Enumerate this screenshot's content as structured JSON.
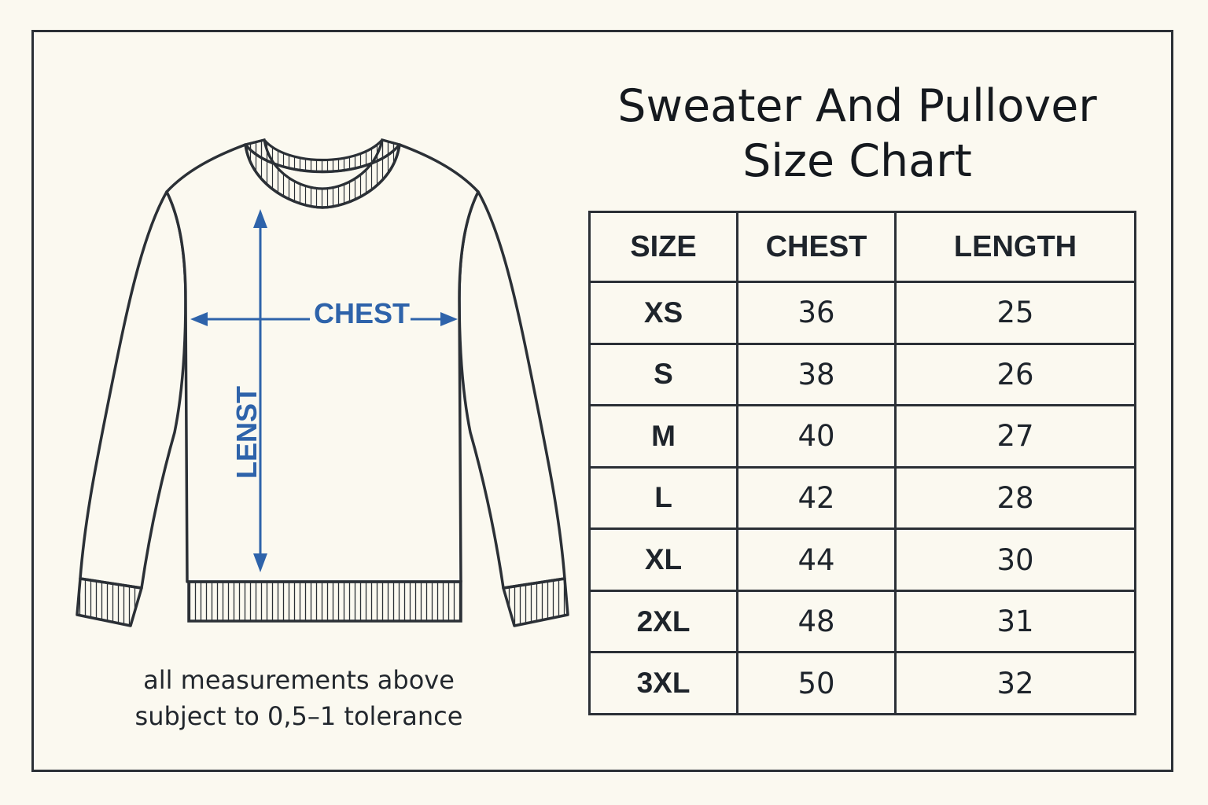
{
  "title": {
    "line1": "Sweater And Pullover",
    "line2": "Size Chart"
  },
  "diagram": {
    "chest_label": "CHEST",
    "length_label": "LENST",
    "arrow_color": "#2e63aa",
    "outline_color": "#2b3036"
  },
  "table": {
    "headers": [
      "SIZE",
      "CHEST",
      "LENGTH"
    ],
    "rows": [
      {
        "size": "XS",
        "chest": "36",
        "length": "25"
      },
      {
        "size": "S",
        "chest": "38",
        "length": "26"
      },
      {
        "size": "M",
        "chest": "40",
        "length": "27"
      },
      {
        "size": "L",
        "chest": "42",
        "length": "28"
      },
      {
        "size": "XL",
        "chest": "44",
        "length": "30"
      },
      {
        "size": "2XL",
        "chest": "48",
        "length": "31"
      },
      {
        "size": "3XL",
        "chest": "50",
        "length": "32"
      }
    ]
  },
  "note": {
    "line1": "all measurements above",
    "line2": "subject to 0,5–1 tolerance"
  },
  "colors": {
    "background": "#fbf9f0",
    "ink": "#2b3036",
    "accent": "#2e63aa"
  }
}
